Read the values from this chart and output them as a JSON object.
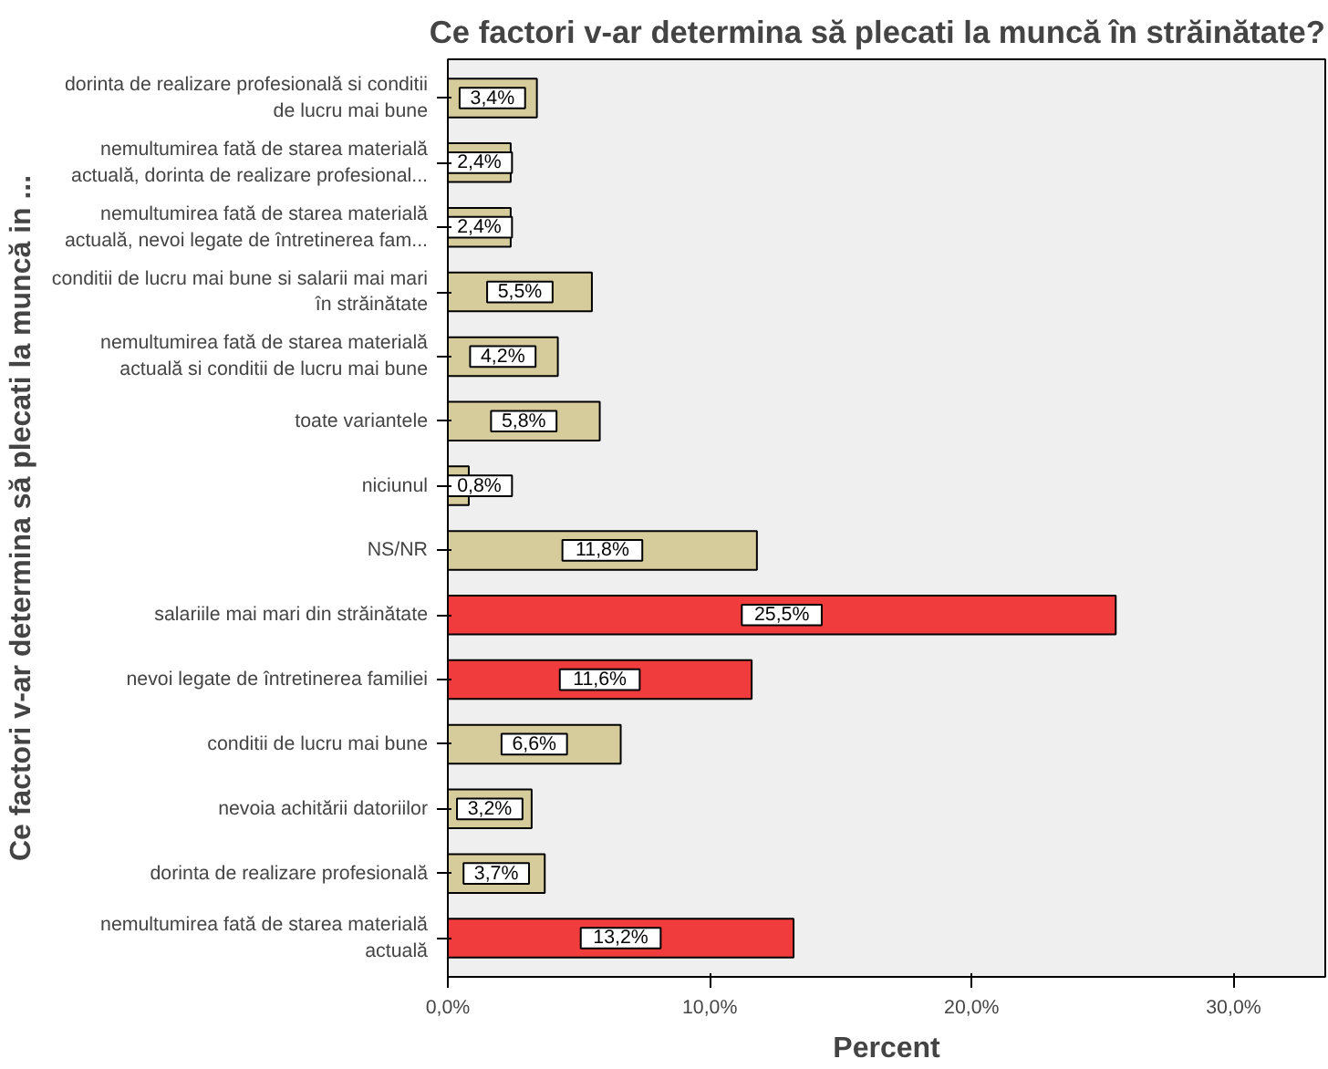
{
  "chart_data": {
    "type": "bar",
    "orientation": "horizontal",
    "title": "Ce factori v-ar determina să plecati la muncă în străinătate?",
    "xlabel": "Percent",
    "ylabel": "Ce factori v-ar determina să plecati la muncă in ...",
    "categories": [
      "dorinta de realizare profesională si conditii\nde lucru mai bune",
      "nemultumirea fată de starea materială\nactuală, dorinta de realizare profesional...",
      "nemultumirea fată de starea materială\nactuală, nevoi legate de întretinerea fam...",
      "conditii de lucru mai bune si salarii mai mari\nîn străinătate",
      "nemultumirea fată de starea materială\nactuală si conditii de lucru mai bune",
      "toate variantele",
      "niciunul",
      "NS/NR",
      "salariile mai mari din străinătate",
      "nevoi legate de întretinerea familiei",
      "conditii de lucru mai bune",
      "nevoia achitării datoriilor",
      "dorinta de realizare profesională",
      "nemultumirea fată de starea materială\nactuală"
    ],
    "values": [
      3.4,
      2.4,
      2.4,
      5.5,
      4.2,
      5.8,
      0.8,
      11.8,
      25.5,
      11.6,
      6.6,
      3.2,
      3.7,
      13.2
    ],
    "value_labels": [
      "3,4%",
      "2,4%",
      "2,4%",
      "5,5%",
      "4,2%",
      "5,8%",
      "0,8%",
      "11,8%",
      "25,5%",
      "11,6%",
      "6,6%",
      "3,2%",
      "3,7%",
      "13,2%"
    ],
    "colors": [
      "#d6cc9b",
      "#d6cc9b",
      "#d6cc9b",
      "#d6cc9b",
      "#d6cc9b",
      "#d6cc9b",
      "#d6cc9b",
      "#d6cc9b",
      "#f03c3c",
      "#f03c3c",
      "#d6cc9b",
      "#d6cc9b",
      "#d6cc9b",
      "#f03c3c"
    ],
    "xlim": [
      0,
      33.5
    ],
    "xticks": [
      {
        "value": 0,
        "label": "0,0%"
      },
      {
        "value": 10,
        "label": "10,0%"
      },
      {
        "value": 20,
        "label": "20,0%"
      },
      {
        "value": 30,
        "label": "30,0%"
      }
    ],
    "grid": false
  }
}
